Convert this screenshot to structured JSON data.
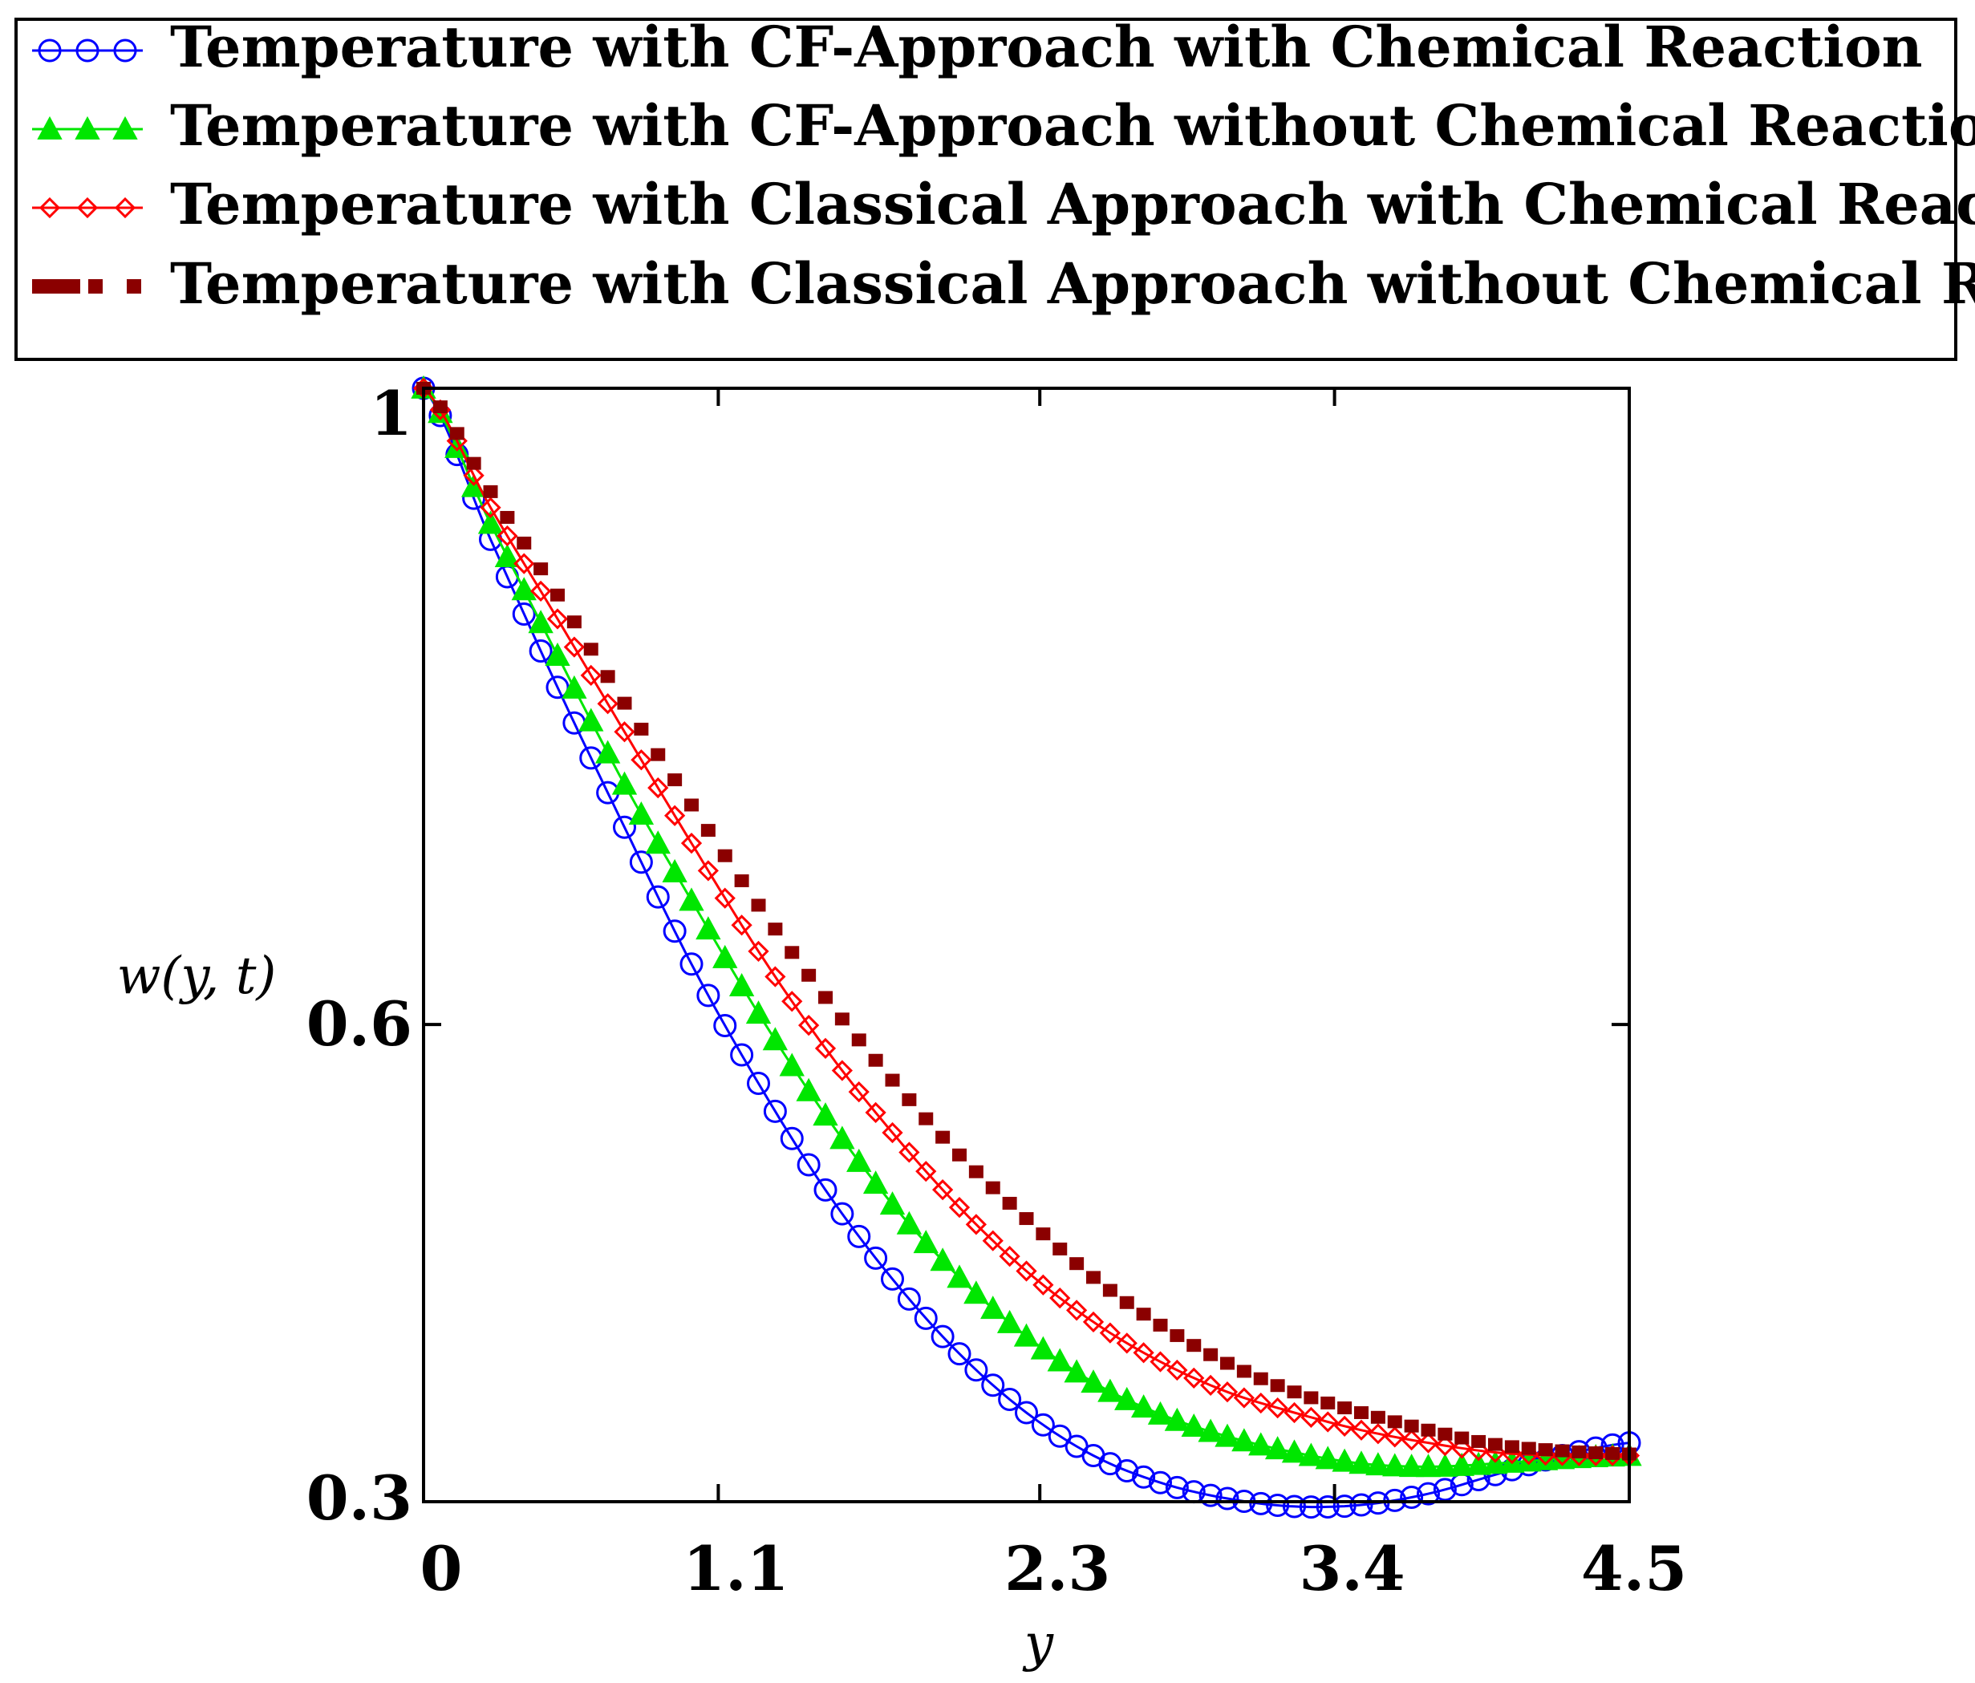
{
  "chart_data": {
    "type": "line",
    "title": "",
    "xlabel": "y",
    "ylabel": "w(y, t)",
    "xlim": [
      0,
      4.5
    ],
    "ylim": [
      0.3,
      1.0
    ],
    "x_ticks": [
      0,
      1.1,
      2.3,
      3.4,
      4.5
    ],
    "x_tick_labels": [
      "0",
      "1.1",
      "2.3",
      "3.4",
      "4.5"
    ],
    "y_ticks": [
      0.3,
      0.6,
      1.0
    ],
    "y_tick_labels": [
      "0.3",
      "0.6",
      "1"
    ],
    "grid": false,
    "legend_position": "top",
    "series": [
      {
        "name": "Temperature with CF-Approach with Chemical Reaction",
        "color": "#0000ff",
        "marker": "circle",
        "line": "solid",
        "x": [
          0,
          0.25,
          0.5,
          0.75,
          1.0,
          1.25,
          1.5,
          1.75,
          2.0,
          2.25,
          2.5,
          2.75,
          3.0,
          3.25,
          3.5,
          3.75,
          4.0,
          4.25,
          4.5
        ],
        "y": [
          1.0,
          0.905,
          0.812,
          0.724,
          0.638,
          0.563,
          0.496,
          0.44,
          0.393,
          0.356,
          0.329,
          0.312,
          0.302,
          0.297,
          0.298,
          0.305,
          0.317,
          0.329,
          0.337
        ]
      },
      {
        "name": "Temperature with CF-Approach without Chemical Reaction",
        "color": "#00e600",
        "marker": "triangle",
        "line": "solid",
        "x": [
          0,
          0.25,
          0.5,
          0.75,
          1.0,
          1.25,
          1.5,
          1.75,
          2.0,
          2.25,
          2.5,
          2.75,
          3.0,
          3.25,
          3.5,
          3.75,
          4.0,
          4.25,
          4.5
        ],
        "y": [
          1.0,
          0.915,
          0.832,
          0.751,
          0.678,
          0.607,
          0.543,
          0.487,
          0.441,
          0.404,
          0.375,
          0.355,
          0.341,
          0.331,
          0.324,
          0.322,
          0.324,
          0.327,
          0.329
        ]
      },
      {
        "name": "Temperature with Classical Approach with Chemical Reaction",
        "color": "#ff0000",
        "marker": "diamond",
        "line": "solid",
        "x": [
          0,
          0.25,
          0.5,
          0.75,
          1.0,
          1.25,
          1.5,
          1.75,
          2.0,
          2.25,
          2.5,
          2.75,
          3.0,
          3.25,
          3.5,
          3.75,
          4.0,
          4.25,
          4.5
        ],
        "y": [
          1.0,
          0.925,
          0.855,
          0.784,
          0.714,
          0.646,
          0.585,
          0.532,
          0.485,
          0.445,
          0.413,
          0.388,
          0.369,
          0.356,
          0.345,
          0.337,
          0.331,
          0.329,
          0.329
        ]
      },
      {
        "name": "Temperature with Classical Approach without Chemical Reaction",
        "color": "#8b0000",
        "marker": "dash",
        "line": "dotted",
        "x": [
          0,
          0.25,
          0.5,
          0.75,
          1.0,
          1.25,
          1.5,
          1.75,
          2.0,
          2.25,
          2.5,
          2.75,
          3.0,
          3.25,
          3.5,
          3.75,
          4.0,
          4.25,
          4.5
        ],
        "y": [
          1.0,
          0.935,
          0.87,
          0.802,
          0.738,
          0.675,
          0.617,
          0.565,
          0.518,
          0.478,
          0.441,
          0.411,
          0.387,
          0.369,
          0.356,
          0.345,
          0.336,
          0.332,
          0.33
        ]
      }
    ]
  }
}
